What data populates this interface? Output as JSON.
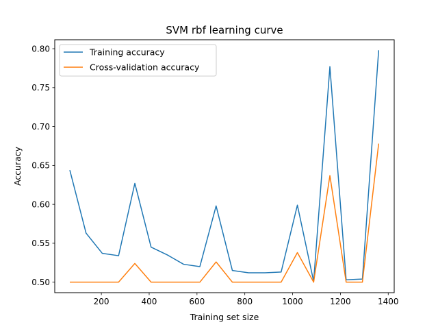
{
  "chart_data": {
    "type": "line",
    "title": "SVM rbf learning curve",
    "xlabel": "Training set size",
    "ylabel": "Accuracy",
    "xlim": [
      5,
      1425
    ],
    "ylim": [
      0.4865,
      0.8115
    ],
    "xticks": [
      {
        "value": 200,
        "label": "200"
      },
      {
        "value": 400,
        "label": "400"
      },
      {
        "value": 600,
        "label": "600"
      },
      {
        "value": 800,
        "label": "800"
      },
      {
        "value": 1000,
        "label": "1000"
      },
      {
        "value": 1200,
        "label": "1200"
      },
      {
        "value": 1400,
        "label": "1400"
      }
    ],
    "yticks": [
      {
        "value": 0.5,
        "label": "0.50"
      },
      {
        "value": 0.55,
        "label": "0.55"
      },
      {
        "value": 0.6,
        "label": "0.60"
      },
      {
        "value": 0.65,
        "label": "0.65"
      },
      {
        "value": 0.7,
        "label": "0.70"
      },
      {
        "value": 0.75,
        "label": "0.75"
      },
      {
        "value": 0.8,
        "label": "0.80"
      }
    ],
    "grid": false,
    "legend_position": "top-left",
    "x": [
      68,
      136,
      204,
      272,
      340,
      408,
      476,
      544,
      612,
      680,
      748,
      816,
      884,
      952,
      1020,
      1088,
      1156,
      1224,
      1292,
      1360
    ],
    "series": [
      {
        "name": "Training accuracy",
        "color": "#1f77b4",
        "values": [
          0.644,
          0.563,
          0.537,
          0.534,
          0.627,
          0.545,
          0.535,
          0.523,
          0.52,
          0.598,
          0.515,
          0.512,
          0.512,
          0.513,
          0.599,
          0.501,
          0.777,
          0.503,
          0.504,
          0.798
        ]
      },
      {
        "name": "Cross-validation accuracy",
        "color": "#ff7f0e",
        "values": [
          0.5,
          0.5,
          0.5,
          0.5,
          0.524,
          0.5,
          0.5,
          0.5,
          0.5,
          0.526,
          0.5,
          0.5,
          0.5,
          0.5,
          0.538,
          0.5,
          0.637,
          0.5,
          0.5,
          0.678
        ]
      }
    ]
  }
}
